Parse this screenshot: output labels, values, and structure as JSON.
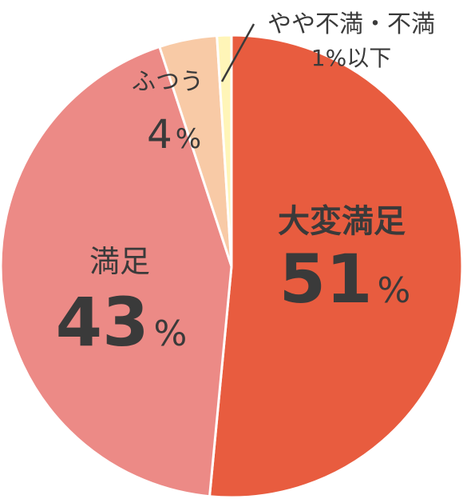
{
  "chart_data": {
    "type": "pie",
    "slices": [
      {
        "label": "大変満足",
        "value": 51,
        "display": "51",
        "unit": "%",
        "color": "#e85c3f"
      },
      {
        "label": "満足",
        "value": 43,
        "display": "43",
        "unit": "%",
        "color": "#ec8a86"
      },
      {
        "label": "ふつう",
        "value": 4,
        "display": "4",
        "unit": "%",
        "color": "#f8caa6"
      },
      {
        "label": "やや不満・不満",
        "value": 1,
        "display": "1%以下",
        "unit": "",
        "color": "#fff5b8"
      }
    ]
  }
}
